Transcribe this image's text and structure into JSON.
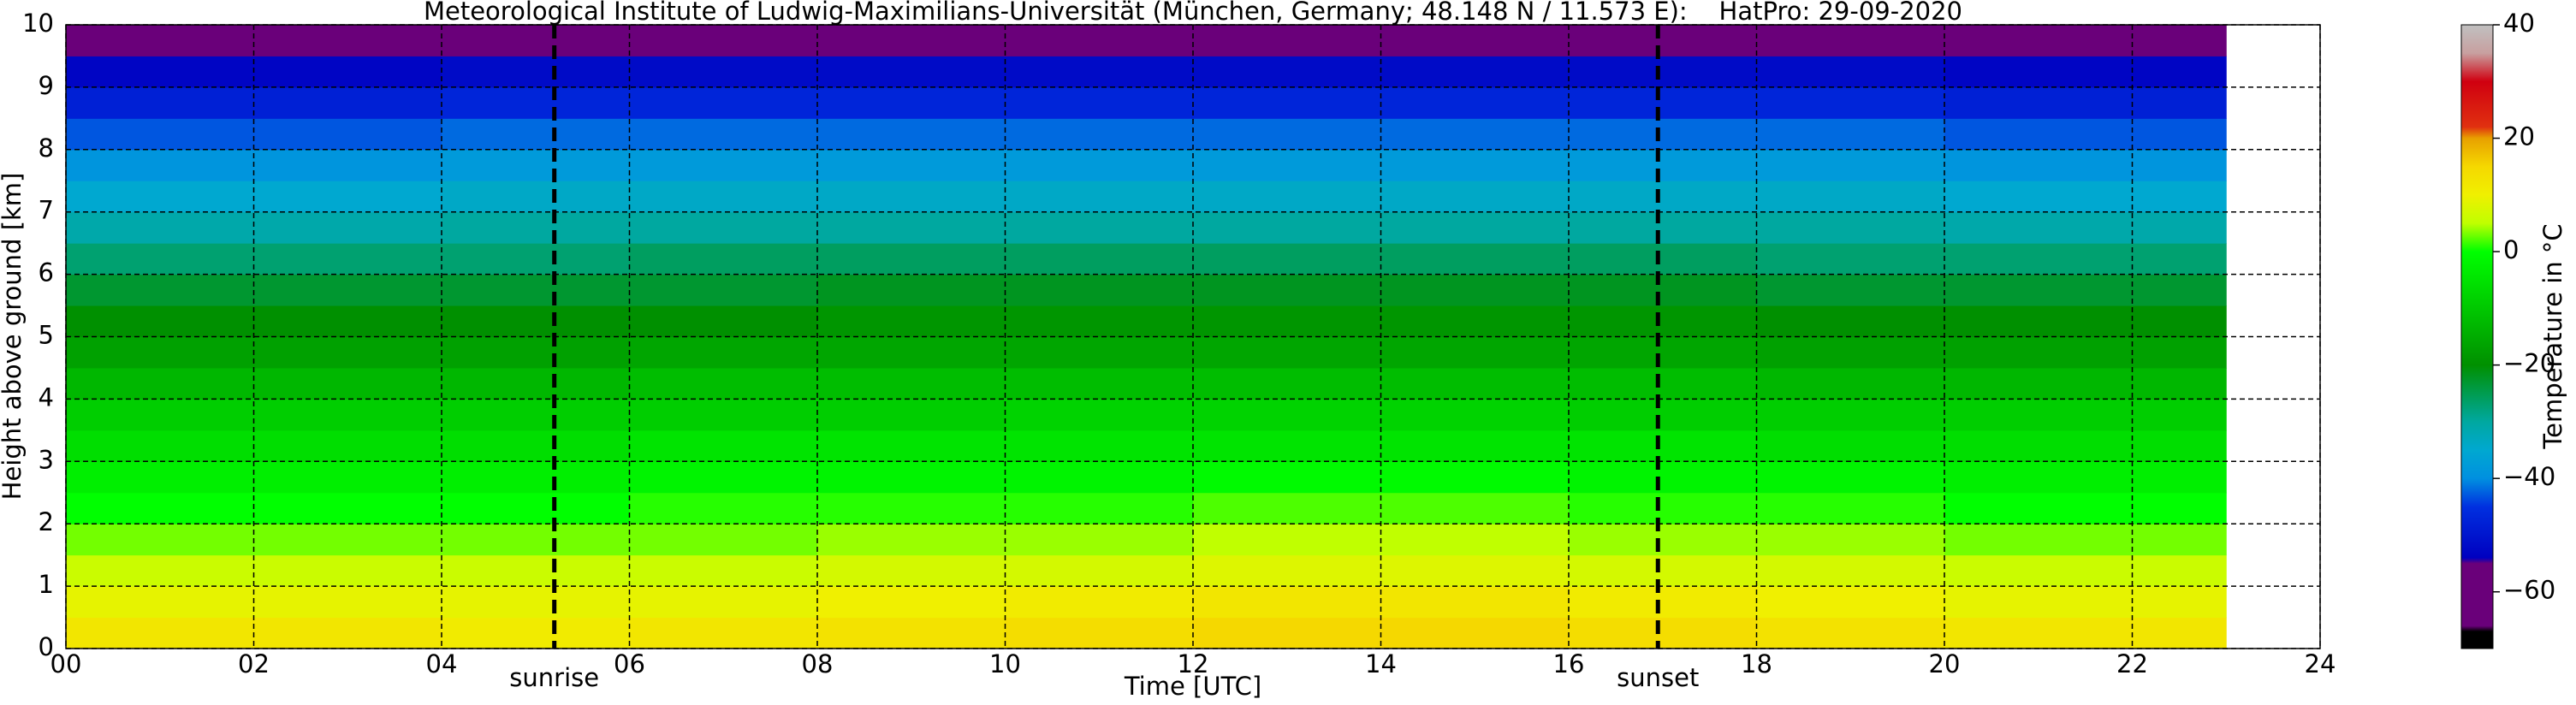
{
  "chart_data": {
    "type": "heatmap",
    "title": "Meteorological Institute of Ludwig-Maximilians-Universität (München, Germany; 48.148 N / 11.573 E):    HatPro: 29-09-2020",
    "x_label": "Time [UTC]",
    "y_label": "Height above ground [km]",
    "xlim": [
      0,
      24
    ],
    "ylim": [
      0,
      10
    ],
    "xticks": [
      {
        "value": 0,
        "label": "00"
      },
      {
        "value": 2,
        "label": "02"
      },
      {
        "value": 4,
        "label": "04"
      },
      {
        "value": 6,
        "label": "06"
      },
      {
        "value": 8,
        "label": "08"
      },
      10,
      12,
      14,
      16,
      18,
      20,
      22,
      24
    ],
    "yticks": [
      0,
      1,
      2,
      3,
      4,
      5,
      6,
      7,
      8,
      9,
      10
    ],
    "grid": true,
    "x": [
      0,
      2,
      4,
      6,
      8,
      10,
      12,
      14,
      16,
      18,
      20,
      22,
      23
    ],
    "y": [
      0,
      0.5,
      1,
      1.5,
      2,
      2.5,
      3,
      3.5,
      4,
      4.5,
      5,
      5.5,
      6,
      6.5,
      7,
      7.5,
      8,
      8.5,
      9,
      9.5,
      10
    ],
    "values": [
      [
        12,
        12,
        11,
        12,
        13,
        14,
        15,
        15,
        14,
        13,
        12,
        12
      ],
      [
        9,
        9,
        9,
        9,
        10,
        11,
        12,
        12,
        11,
        10,
        9,
        9
      ],
      [
        6,
        6,
        6,
        6,
        7,
        7,
        8,
        8,
        7,
        7,
        6,
        6
      ],
      [
        3,
        3,
        3,
        3,
        4,
        4,
        5,
        5,
        4,
        4,
        3,
        3
      ],
      [
        0,
        0,
        0,
        1,
        1,
        1,
        2,
        2,
        1,
        1,
        0,
        0
      ],
      [
        -3,
        -3,
        -3,
        -2,
        -2,
        -2,
        -1,
        -1,
        -2,
        -2,
        -3,
        -3
      ],
      [
        -6,
        -6,
        -6,
        -5,
        -5,
        -5,
        -5,
        -5,
        -5,
        -6,
        -6,
        -6
      ],
      [
        -9,
        -9,
        -9,
        -9,
        -9,
        -8,
        -8,
        -8,
        -9,
        -9,
        -9,
        -9
      ],
      [
        -13,
        -13,
        -13,
        -12,
        -12,
        -12,
        -12,
        -12,
        -12,
        -13,
        -13,
        -13
      ],
      [
        -17,
        -17,
        -17,
        -16,
        -16,
        -16,
        -16,
        -16,
        -16,
        -17,
        -17,
        -17
      ],
      [
        -20,
        -20,
        -20,
        -20,
        -19,
        -19,
        -19,
        -19,
        -19,
        -20,
        -20,
        -20
      ],
      [
        -23,
        -23,
        -23,
        -23,
        -22,
        -22,
        -22,
        -22,
        -22,
        -23,
        -23,
        -23
      ],
      [
        -27,
        -27,
        -27,
        -26,
        -26,
        -26,
        -26,
        -26,
        -26,
        -27,
        -27,
        -27
      ],
      [
        -31,
        -31,
        -30,
        -30,
        -30,
        -30,
        -30,
        -30,
        -30,
        -30,
        -31,
        -31
      ],
      [
        -35,
        -35,
        -34,
        -34,
        -34,
        -34,
        -34,
        -34,
        -34,
        -34,
        -35,
        -35
      ],
      [
        -39,
        -39,
        -38,
        -38,
        -38,
        -38,
        -38,
        -38,
        -38,
        -38,
        -39,
        -39
      ],
      [
        -43,
        -43,
        -42,
        -42,
        -42,
        -42,
        -42,
        -42,
        -42,
        -42,
        -43,
        -43
      ],
      [
        -48,
        -48,
        -47,
        -47,
        -47,
        -47,
        -47,
        -47,
        -47,
        -47,
        -48,
        -48
      ],
      [
        -53,
        -53,
        -52,
        -52,
        -52,
        -52,
        -52,
        -52,
        -52,
        -52,
        -53,
        -53
      ],
      [
        -56,
        -56,
        -55,
        -55,
        -55,
        -55,
        -55,
        -55,
        -55,
        -55,
        -56,
        -56
      ]
    ],
    "annotations": [
      {
        "label": "sunrise",
        "x": 5.2
      },
      {
        "label": "sunset",
        "x": 16.95
      }
    ],
    "colorbar": {
      "label": "Temperature in °C",
      "clim": [
        -70,
        40
      ],
      "ticks": [
        {
          "value": -60,
          "label": "−60"
        },
        {
          "value": -40,
          "label": "−40"
        },
        {
          "value": -20,
          "label": "−20"
        },
        0,
        20,
        40
      ],
      "stops": [
        [
          -70,
          "#000000"
        ],
        [
          -67,
          "#000000"
        ],
        [
          -66,
          "#6a007a"
        ],
        [
          -55,
          "#6a007a"
        ],
        [
          -54,
          "#0000c0"
        ],
        [
          -45,
          "#0030e0"
        ],
        [
          -40,
          "#0090e0"
        ],
        [
          -35,
          "#00a8d0"
        ],
        [
          -30,
          "#00a8a0"
        ],
        [
          -20,
          "#009000"
        ],
        [
          -10,
          "#00c800"
        ],
        [
          0,
          "#00ff00"
        ],
        [
          5,
          "#c0ff00"
        ],
        [
          10,
          "#f0f000"
        ],
        [
          15,
          "#f5d800"
        ],
        [
          20,
          "#e8a000"
        ],
        [
          22,
          "#e03010"
        ],
        [
          30,
          "#d00010"
        ],
        [
          35,
          "#c8a0a0"
        ],
        [
          40,
          "#c0c0c0"
        ]
      ]
    }
  }
}
